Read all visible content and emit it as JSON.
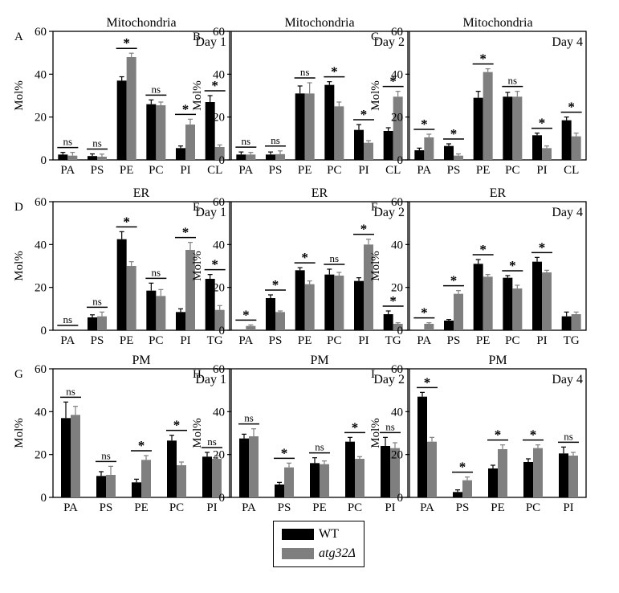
{
  "figure": {
    "legend": {
      "items": [
        {
          "label": "WT",
          "color": "#000000",
          "italic": false
        },
        {
          "label": "atg32Δ",
          "color": "#7f7f7f",
          "italic": true
        }
      ]
    }
  },
  "chart_data": [
    {
      "type": "bar",
      "panel": "A",
      "title": "Mitochondria",
      "day_label": "Day 1",
      "ylabel": "Mol%",
      "ylim": [
        0,
        60
      ],
      "yticks": [
        0,
        20,
        40,
        60
      ],
      "categories": [
        "PA",
        "PS",
        "PE",
        "PC",
        "PI",
        "CL"
      ],
      "series": [
        {
          "name": "WT",
          "values": [
            2.5,
            1.8,
            37,
            26,
            5.5,
            27
          ],
          "errors": [
            1,
            1,
            1.8,
            2,
            1,
            3
          ]
        },
        {
          "name": "atg32Δ",
          "values": [
            2,
            1.5,
            48,
            25.5,
            16.5,
            6
          ],
          "errors": [
            1.5,
            1.2,
            1.8,
            1.5,
            2.5,
            1
          ]
        }
      ],
      "annotations": [
        "ns",
        "ns",
        "*",
        "ns",
        "*",
        "*"
      ]
    },
    {
      "type": "bar",
      "panel": "B",
      "title": "Mitochondria",
      "day_label": "Day 2",
      "ylabel": "Mol%",
      "ylim": [
        0,
        60
      ],
      "yticks": [
        0,
        20,
        40,
        60
      ],
      "categories": [
        "PA",
        "PS",
        "PE",
        "PC",
        "PI",
        "CL"
      ],
      "series": [
        {
          "name": "WT",
          "values": [
            2.5,
            2.5,
            31,
            35,
            14,
            13.5
          ],
          "errors": [
            1.2,
            1.2,
            3.5,
            1.5,
            2.5,
            1.5
          ]
        },
        {
          "name": "atg32Δ",
          "values": [
            2.5,
            2.7,
            31,
            25,
            8,
            29.5
          ],
          "errors": [
            1,
            1.5,
            5,
            2,
            1,
            2.5
          ]
        }
      ],
      "annotations": [
        "ns",
        "ns",
        "ns",
        "*",
        "*",
        "*"
      ]
    },
    {
      "type": "bar",
      "panel": "C",
      "title": "Mitochondria",
      "day_label": "Day 4",
      "ylabel": "Mol%",
      "ylim": [
        0,
        60
      ],
      "yticks": [
        0,
        20,
        40,
        60
      ],
      "categories": [
        "PA",
        "PS",
        "PE",
        "PC",
        "PI",
        "CL"
      ],
      "series": [
        {
          "name": "WT",
          "values": [
            4.5,
            6.5,
            29,
            29.5,
            11.5,
            18.5
          ],
          "errors": [
            1,
            1,
            3,
            2,
            1,
            1.5
          ]
        },
        {
          "name": "atg32Δ",
          "values": [
            10.5,
            2,
            41,
            29.5,
            5.5,
            11
          ],
          "errors": [
            1.5,
            0.8,
            1.5,
            2.5,
            1,
            1.5
          ]
        }
      ],
      "annotations": [
        "*",
        "*",
        "*",
        "ns",
        "*",
        "*"
      ]
    },
    {
      "type": "bar",
      "panel": "D",
      "title": "ER",
      "day_label": "Day 1",
      "ylabel": "Mol%",
      "ylim": [
        0,
        60
      ],
      "yticks": [
        0,
        20,
        40,
        60
      ],
      "categories": [
        "PA",
        "PS",
        "PE",
        "PC",
        "PI",
        "TG"
      ],
      "series": [
        {
          "name": "WT",
          "values": [
            0,
            6,
            42.5,
            18.5,
            8.5,
            24
          ],
          "errors": [
            0,
            1.2,
            3.5,
            3.5,
            1.5,
            2
          ]
        },
        {
          "name": "atg32Δ",
          "values": [
            0,
            6.5,
            30,
            16,
            37.5,
            9.5
          ],
          "errors": [
            0,
            2,
            2,
            3,
            3.5,
            2
          ]
        }
      ],
      "annotations": [
        "ns",
        "ns",
        "*",
        "ns",
        "*",
        "*"
      ]
    },
    {
      "type": "bar",
      "panel": "E",
      "title": "ER",
      "day_label": "Day 2",
      "ylabel": "Mol%",
      "ylim": [
        0,
        60
      ],
      "yticks": [
        0,
        20,
        40,
        60
      ],
      "categories": [
        "PA",
        "PS",
        "PE",
        "PC",
        "PI",
        "TG"
      ],
      "series": [
        {
          "name": "WT",
          "values": [
            0,
            15,
            28,
            26,
            23,
            7.5
          ],
          "errors": [
            0,
            1.5,
            1.2,
            2.5,
            1.5,
            1.5
          ]
        },
        {
          "name": "atg32Δ",
          "values": [
            2,
            8.5,
            21.5,
            25.5,
            40,
            3
          ],
          "errors": [
            0.5,
            0.5,
            1.5,
            1.5,
            2.5,
            0.5
          ]
        }
      ],
      "annotations": [
        "*",
        "*",
        "*",
        "ns",
        "*",
        "*"
      ]
    },
    {
      "type": "bar",
      "panel": "F",
      "title": "ER",
      "day_label": "Day 4",
      "ylabel": "Mol%",
      "ylim": [
        0,
        60
      ],
      "yticks": [
        0,
        20,
        40,
        60
      ],
      "categories": [
        "PA",
        "PS",
        "PE",
        "PC",
        "PI",
        "TG"
      ],
      "series": [
        {
          "name": "WT",
          "values": [
            0,
            4.5,
            31,
            24.5,
            32,
            6.5
          ],
          "errors": [
            0,
            0.5,
            2,
            1,
            2,
            2
          ]
        },
        {
          "name": "atg32Δ",
          "values": [
            3,
            17,
            25,
            19.5,
            27,
            7.5
          ],
          "errors": [
            0.5,
            1.5,
            1,
            1.5,
            1,
            1
          ]
        }
      ],
      "annotations": [
        "*",
        "*",
        "*",
        "*",
        "*",
        ""
      ]
    },
    {
      "type": "bar",
      "panel": "G",
      "title": "PM",
      "day_label": "Day 1",
      "ylabel": "Mol%",
      "ylim": [
        0,
        60
      ],
      "yticks": [
        0,
        20,
        40,
        60
      ],
      "categories": [
        "PA",
        "PS",
        "PE",
        "PC",
        "PI"
      ],
      "series": [
        {
          "name": "WT",
          "values": [
            37,
            10,
            7,
            26.5,
            19
          ],
          "errors": [
            7.5,
            2,
            1.5,
            2.5,
            2
          ]
        },
        {
          "name": "atg32Δ",
          "values": [
            38.5,
            10.5,
            17.5,
            15,
            18
          ],
          "errors": [
            4,
            4,
            2,
            1.5,
            1.5
          ]
        }
      ],
      "annotations": [
        "ns",
        "ns",
        "*",
        "*",
        "ns"
      ]
    },
    {
      "type": "bar",
      "panel": "H",
      "title": "PM",
      "day_label": "Day 2",
      "ylabel": "Mol%",
      "ylim": [
        0,
        60
      ],
      "yticks": [
        0,
        20,
        40,
        60
      ],
      "categories": [
        "PA",
        "PS",
        "PE",
        "PC",
        "PI"
      ],
      "series": [
        {
          "name": "WT",
          "values": [
            27.5,
            6,
            16,
            26,
            24
          ],
          "errors": [
            2,
            1,
            2.5,
            2,
            4
          ]
        },
        {
          "name": "atg32Δ",
          "values": [
            28.5,
            14,
            15.5,
            18,
            23
          ],
          "errors": [
            3.5,
            2,
            1.5,
            1,
            2.5
          ]
        }
      ],
      "annotations": [
        "ns",
        "*",
        "ns",
        "*",
        "ns"
      ]
    },
    {
      "type": "bar",
      "panel": "I",
      "title": "PM",
      "day_label": "Day 4",
      "ylabel": "Mol%",
      "ylim": [
        0,
        60
      ],
      "yticks": [
        0,
        20,
        40,
        60
      ],
      "categories": [
        "PA",
        "PS",
        "PE",
        "PC",
        "PI"
      ],
      "series": [
        {
          "name": "WT",
          "values": [
            47,
            2.5,
            13.5,
            16.5,
            20.5
          ],
          "errors": [
            2,
            1,
            1.5,
            1.5,
            3
          ]
        },
        {
          "name": "atg32Δ",
          "values": [
            26,
            8,
            22.5,
            23,
            19.5
          ],
          "errors": [
            2,
            1.5,
            2,
            1.5,
            1.5
          ]
        }
      ],
      "annotations": [
        "*",
        "*",
        "*",
        "*",
        "ns"
      ]
    }
  ]
}
